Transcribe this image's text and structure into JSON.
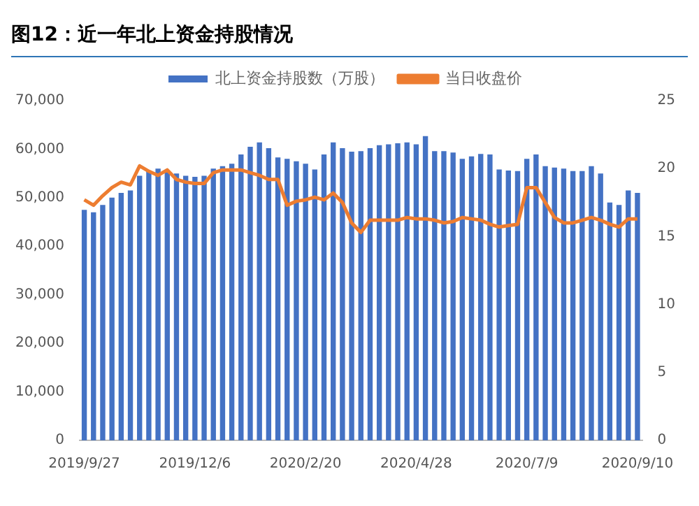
{
  "chart_data": {
    "type": "bar",
    "title": "图12：近一年北上资金持股情况",
    "categories": [
      "2019/9/27",
      null,
      null,
      null,
      null,
      null,
      null,
      null,
      null,
      null,
      null,
      null,
      "2019/12/6",
      null,
      null,
      null,
      null,
      null,
      null,
      null,
      null,
      null,
      null,
      null,
      "2020/2/20",
      null,
      null,
      null,
      null,
      null,
      null,
      null,
      null,
      null,
      null,
      null,
      "2020/4/28",
      null,
      null,
      null,
      null,
      null,
      null,
      null,
      null,
      null,
      null,
      null,
      "2020/7/9",
      null,
      null,
      null,
      null,
      null,
      null,
      null,
      null,
      null,
      null,
      null,
      "2020/9/10"
    ],
    "series": [
      {
        "name": "北上资金持股数（万股）",
        "color": "#4472c4",
        "values": [
          47500,
          47000,
          48500,
          50000,
          51000,
          51500,
          54500,
          55500,
          56000,
          55500,
          55000,
          54500,
          54300,
          54500,
          56000,
          56500,
          57000,
          58900,
          60500,
          61400,
          60200,
          58300,
          58000,
          57500,
          57000,
          55800,
          58900,
          61400,
          60200,
          59500,
          59600,
          60200,
          60800,
          61000,
          61200,
          61400,
          61000,
          62700,
          59600,
          59600,
          59300,
          58000,
          58500,
          59000,
          58900,
          55800,
          55600,
          55500,
          58000,
          58900,
          56500,
          56200,
          56000,
          55500,
          55500,
          56500,
          55000,
          49000,
          48500,
          51500,
          51000
        ]
      },
      {
        "name": "当日收盘价",
        "type": "line",
        "axis": "y2",
        "color": "#ed7d31",
        "values": [
          17.7,
          17.3,
          18.0,
          18.6,
          19.0,
          18.8,
          20.2,
          19.8,
          19.5,
          19.9,
          19.2,
          19.0,
          18.9,
          18.9,
          19.7,
          19.9,
          19.9,
          19.9,
          19.7,
          19.5,
          19.2,
          19.2,
          17.3,
          17.6,
          17.7,
          17.9,
          17.7,
          18.2,
          17.5,
          16.0,
          15.3,
          16.2,
          16.2,
          16.2,
          16.2,
          16.4,
          16.3,
          16.3,
          16.2,
          16.0,
          16.1,
          16.4,
          16.3,
          16.2,
          15.9,
          15.7,
          15.8,
          15.9,
          18.6,
          18.6,
          17.5,
          16.4,
          16.0,
          16.0,
          16.2,
          16.4,
          16.2,
          15.9,
          15.7,
          16.3,
          16.3
        ]
      }
    ],
    "ylim": [
      0,
      70000
    ],
    "yticks": [
      0,
      {
        "value": 10000,
        "label": "10,000"
      },
      {
        "value": 20000,
        "label": "20,000"
      },
      {
        "value": 30000,
        "label": "30,000"
      },
      {
        "value": 40000,
        "label": "40,000"
      },
      {
        "value": 50000,
        "label": "50,000"
      },
      {
        "value": 60000,
        "label": "60,000"
      },
      {
        "value": 70000,
        "label": "70,000"
      }
    ],
    "y2lim": [
      0,
      25
    ],
    "y2ticks": [
      0,
      5,
      10,
      15,
      20,
      25
    ],
    "legend": "top",
    "grid": false
  }
}
